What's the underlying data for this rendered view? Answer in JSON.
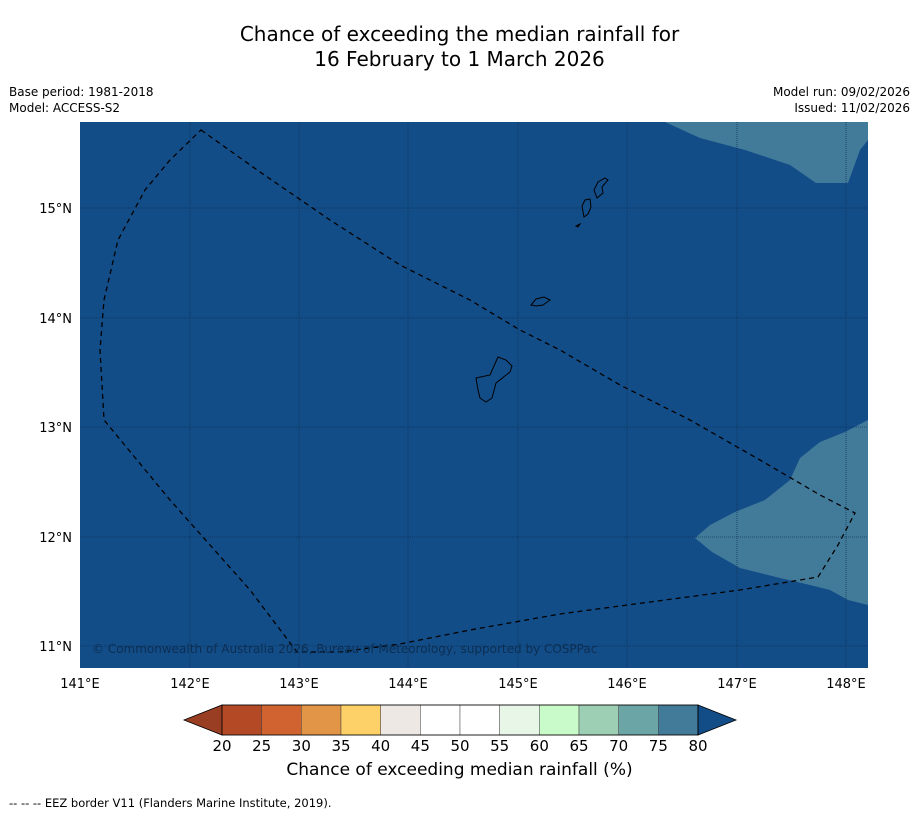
{
  "title_line1": "Chance of exceeding the median rainfall for",
  "title_line2": "16 February to 1 March 2026",
  "base_period": "Base period: 1981-2018",
  "model": "Model: ACCESS-S2",
  "model_run": "Model run: 09/02/2026",
  "issued": "Issued: 11/02/2026",
  "copyright": "© Commonwealth of Australia 2026, Bureau of Meteorology, supported by COSPPac",
  "colorbar_title": "Chance of exceeding median rainfall (%)",
  "footer": "--  --  -- EEZ border V11 (Flanders Marine Institute, 2019).",
  "map": {
    "lon_range": [
      141.0,
      148.2
    ],
    "lat_range": [
      10.8,
      15.8
    ],
    "lon_ticks": [
      "141°E",
      "142°E",
      "143°E",
      "144°E",
      "145°E",
      "146°E",
      "147°E",
      "148°E"
    ],
    "lat_ticks": [
      "15°N",
      "14°N",
      "13°N",
      "12°N",
      "11°N"
    ],
    "base_color": "#134d88",
    "secondary_color": "#427a9a"
  },
  "colorbar": {
    "ticks": [
      "20",
      "25",
      "30",
      "35",
      "40",
      "45",
      "50",
      "55",
      "60",
      "65",
      "70",
      "75",
      "80"
    ],
    "colors": [
      "#b44a25",
      "#d0632f",
      "#e39547",
      "#fdd068",
      "#ede8e3",
      "#ffffff",
      "#ffffff",
      "#e8f6e8",
      "#c9fbca",
      "#9dcfb4",
      "#6ca5a5",
      "#427a9a"
    ],
    "under_color": "#993d23",
    "over_color": "#134d88"
  }
}
